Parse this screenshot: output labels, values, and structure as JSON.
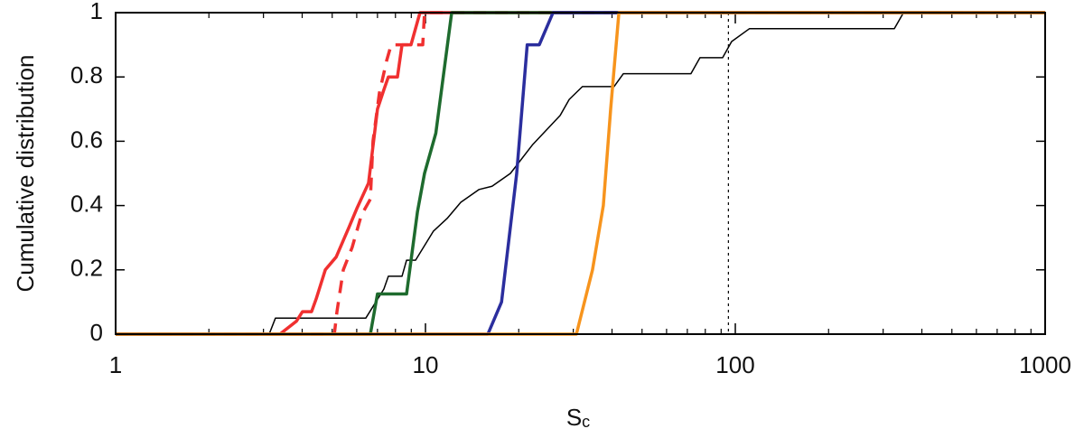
{
  "chart_data": {
    "type": "line",
    "x_label": {
      "main": "S",
      "sub": "c"
    },
    "y_label": "Cumulative distribution",
    "xscale": "log",
    "xlim": [
      1,
      1000
    ],
    "ylim": [
      0,
      1
    ],
    "xticks": [
      1,
      10,
      100,
      1000
    ],
    "xminorticks": [
      2,
      3,
      4,
      5,
      6,
      7,
      8,
      9,
      20,
      30,
      40,
      50,
      60,
      70,
      80,
      90,
      200,
      300,
      400,
      500,
      600,
      700,
      800,
      900
    ],
    "yticks": [
      0,
      0.2,
      0.4,
      0.6,
      0.8,
      1
    ],
    "grid": false,
    "reference_lines": [
      {
        "x": 95,
        "color": "#000000",
        "style": "dotted"
      }
    ],
    "series": [
      {
        "color": "#000000",
        "width": 1.5,
        "style": "solid",
        "x": [
          1,
          3.13,
          3.28,
          6.42,
          7.34,
          7.59,
          8.4,
          8.69,
          9.29,
          10.6,
          11.75,
          13.0,
          14.9,
          16.4,
          18.8,
          22.2,
          27.2,
          29.1,
          32.1,
          40.6,
          43.5,
          71.9,
          76.9,
          91.0,
          97.3,
          111,
          326,
          349,
          1000
        ],
        "values": [
          0,
          0,
          0.05,
          0.05,
          0.14,
          0.18,
          0.18,
          0.23,
          0.23,
          0.32,
          0.36,
          0.41,
          0.45,
          0.46,
          0.5,
          0.59,
          0.68,
          0.73,
          0.77,
          0.77,
          0.81,
          0.81,
          0.86,
          0.86,
          0.91,
          0.95,
          0.95,
          1,
          1
        ]
      },
      {
        "color": "#f03030",
        "width": 3.5,
        "style": "dashed",
        "x": [
          1,
          5.08,
          5.18,
          5.43,
          5.8,
          6.21,
          6.64,
          6.77,
          7.1,
          7.49,
          7.75,
          9.8,
          9.93,
          1000
        ],
        "values": [
          0,
          0,
          0.07,
          0.2,
          0.27,
          0.37,
          0.42,
          0.6,
          0.75,
          0.85,
          0.9,
          0.9,
          1,
          1
        ]
      },
      {
        "color": "#f03030",
        "width": 3.5,
        "style": "solid",
        "x": [
          1,
          3.39,
          3.83,
          4.01,
          4.29,
          4.44,
          4.75,
          5.15,
          5.65,
          6.0,
          6.55,
          7.0,
          7.34,
          7.59,
          8.12,
          8.4,
          8.98,
          9.6,
          1000
        ],
        "values": [
          0,
          0,
          0.04,
          0.07,
          0.07,
          0.11,
          0.2,
          0.24,
          0.33,
          0.39,
          0.47,
          0.7,
          0.76,
          0.8,
          0.8,
          0.9,
          0.9,
          1,
          1
        ]
      },
      {
        "color": "#1e6b2e",
        "width": 3.5,
        "style": "solid",
        "x": [
          1,
          6.64,
          7.0,
          8.69,
          9.42,
          9.93,
          10.8,
          12.15,
          1000
        ],
        "values": [
          0,
          0,
          0.125,
          0.125,
          0.38,
          0.5,
          0.625,
          1,
          1
        ]
      },
      {
        "color": "#2b2e9e",
        "width": 3.5,
        "style": "solid",
        "x": [
          1,
          15.9,
          17.6,
          19.7,
          21.3,
          23.3,
          25.8,
          1000
        ],
        "values": [
          0,
          0,
          0.1,
          0.5,
          0.9,
          0.9,
          1,
          1
        ]
      },
      {
        "color": "#f7941d",
        "width": 3.5,
        "style": "solid",
        "x": [
          1,
          30.7,
          34.6,
          37.5,
          39.6,
          42.1,
          1000
        ],
        "values": [
          0,
          0,
          0.2,
          0.4,
          0.7,
          1,
          1
        ]
      }
    ]
  }
}
